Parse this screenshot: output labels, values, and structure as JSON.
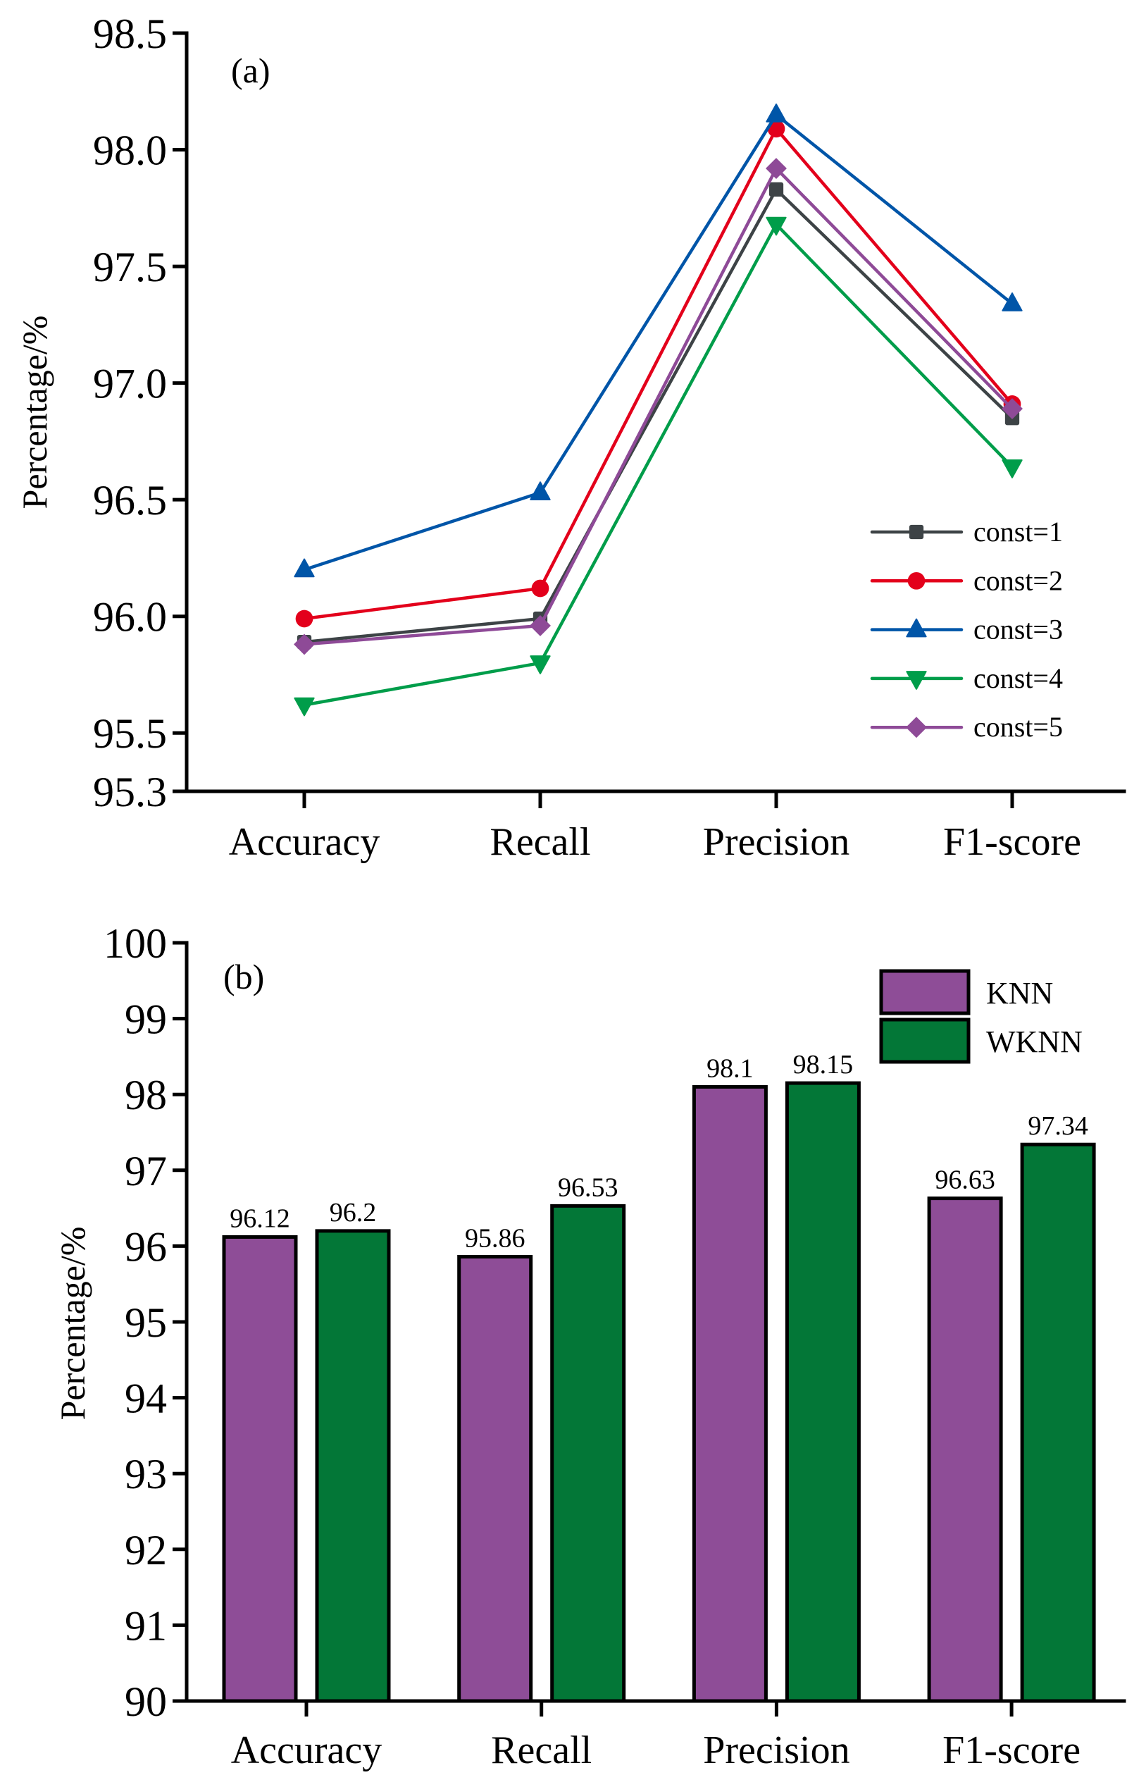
{
  "chart_data": [
    {
      "type": "line",
      "panel_label": "(a)",
      "title": "",
      "xlabel": "",
      "ylabel": "Percentage/%",
      "categories": [
        "Accuracy",
        "Recall",
        "Precision",
        "F1-score"
      ],
      "ylim": [
        95.25,
        98.5
      ],
      "yticks": [
        {
          "value": 98.5,
          "label": "98.5"
        },
        {
          "value": 98.0,
          "label": "98.0"
        },
        {
          "value": 97.5,
          "label": "97.5"
        },
        {
          "value": 97.0,
          "label": "97.0"
        },
        {
          "value": 96.5,
          "label": "96.5"
        },
        {
          "value": 96.0,
          "label": "96.0"
        },
        {
          "value": 95.5,
          "label": "95.5"
        },
        {
          "value": 95.25,
          "label": "95.3"
        }
      ],
      "grid": false,
      "legend_position": "bottom-right",
      "series": [
        {
          "name": "const=1",
          "marker": "square",
          "color": "#3D4346",
          "values": [
            95.89,
            95.99,
            97.83,
            96.85
          ]
        },
        {
          "name": "const=2",
          "marker": "circle",
          "color": "#E3001B",
          "values": [
            95.99,
            96.12,
            98.09,
            96.91
          ]
        },
        {
          "name": "const=3",
          "marker": "triangle-up",
          "color": "#0055A8",
          "values": [
            96.2,
            96.53,
            98.15,
            97.34
          ]
        },
        {
          "name": "const=4",
          "marker": "triangle-down",
          "color": "#009D4A",
          "values": [
            95.62,
            95.8,
            97.68,
            96.64
          ]
        },
        {
          "name": "const=5",
          "marker": "diamond",
          "color": "#8E4A97",
          "values": [
            95.88,
            95.96,
            97.92,
            96.89
          ]
        }
      ]
    },
    {
      "type": "bar",
      "panel_label": "(b)",
      "title": "",
      "xlabel": "",
      "ylabel": "Percentage/%",
      "categories": [
        "Accuracy",
        "Recall",
        "Precision",
        "F1-score"
      ],
      "ylim": [
        90,
        100
      ],
      "yticks": [
        {
          "value": 100,
          "label": "100"
        },
        {
          "value": 99,
          "label": "99"
        },
        {
          "value": 98,
          "label": "98"
        },
        {
          "value": 97,
          "label": "97"
        },
        {
          "value": 96,
          "label": "96"
        },
        {
          "value": 95,
          "label": "95"
        },
        {
          "value": 94,
          "label": "94"
        },
        {
          "value": 93,
          "label": "93"
        },
        {
          "value": 92,
          "label": "92"
        },
        {
          "value": 91,
          "label": "91"
        },
        {
          "value": 90,
          "label": "90"
        }
      ],
      "grid": false,
      "legend_position": "top-right",
      "series": [
        {
          "name": "KNN",
          "color": "#8E4D97",
          "values": [
            96.12,
            95.86,
            98.1,
            96.63
          ],
          "labels": [
            "96.12",
            "95.86",
            "98.1",
            "96.63"
          ]
        },
        {
          "name": "WKNN",
          "color": "#037737",
          "values": [
            96.2,
            96.53,
            98.15,
            97.34
          ],
          "labels": [
            "96.2",
            "96.53",
            "98.15",
            "97.34"
          ]
        }
      ]
    }
  ]
}
